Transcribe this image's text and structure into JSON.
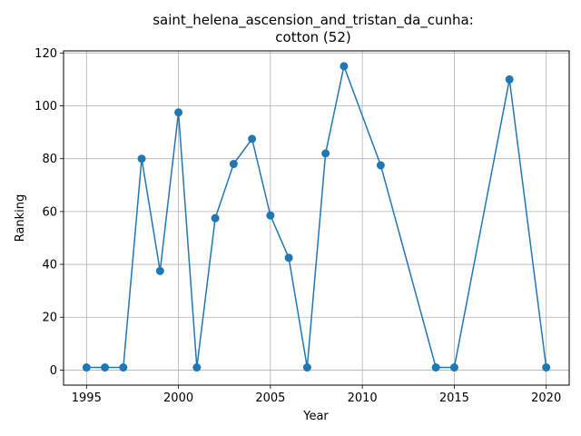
{
  "chart_data": {
    "type": "line",
    "title_line1": "saint_helena_ascension_and_tristan_da_cunha:",
    "title_line2": "cotton (52)",
    "xlabel": "Year",
    "ylabel": "Ranking",
    "xlim": [
      1993.75,
      2021.25
    ],
    "ylim": [
      -5.7,
      120.8
    ],
    "xticks": [
      1995,
      2000,
      2005,
      2010,
      2015,
      2020
    ],
    "yticks": [
      0,
      20,
      40,
      60,
      80,
      100,
      120
    ],
    "grid": true,
    "color": "#1f77b4",
    "marker": "circle",
    "series": [
      {
        "x": [
          1995,
          1996,
          1997,
          1998,
          1999,
          2000,
          2001,
          2002,
          2003,
          2004,
          2005,
          2006,
          2007,
          2008,
          2009,
          2011,
          2014,
          2015,
          2018,
          2020
        ],
        "y": [
          1,
          1,
          1,
          80,
          37.5,
          97.5,
          1,
          57.5,
          78,
          87.5,
          58.5,
          42.5,
          1,
          82,
          115,
          77.5,
          1,
          1,
          110,
          1
        ]
      }
    ]
  }
}
